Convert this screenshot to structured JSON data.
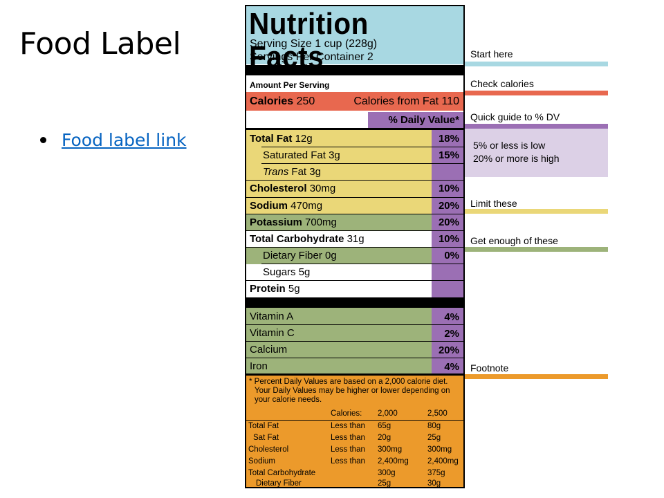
{
  "slide": {
    "title": "Food Label",
    "link_text": "Food label link"
  },
  "label": {
    "title": "Nutrition Facts",
    "serving_size": "Serving Size 1 cup (228g)",
    "servings": "Servings Per Container  2",
    "amount_per_serving": "Amount Per Serving",
    "calories_label": "Calories",
    "calories_value": "250",
    "calories_fat": "Calories from Fat 110",
    "daily_value_header": "% Daily Value*",
    "rows": [
      {
        "name": "Total Fat",
        "amount": "12g",
        "pct": "18%"
      },
      {
        "name": "Saturated Fat",
        "amount": "3g",
        "pct": "15%"
      },
      {
        "name": "Trans",
        "suffix": " Fat",
        "amount": "3g",
        "pct": ""
      },
      {
        "name": "Cholesterol",
        "amount": "30mg",
        "pct": "10%"
      },
      {
        "name": "Sodium",
        "amount": "470mg",
        "pct": "20%"
      },
      {
        "name": "Potassium",
        "amount": "700mg",
        "pct": "20%"
      },
      {
        "name": "Total Carbohydrate",
        "amount": "31g",
        "pct": "10%"
      },
      {
        "name": "Dietary Fiber",
        "amount": "0g",
        "pct": "0%"
      },
      {
        "name": "Sugars",
        "amount": "5g",
        "pct": ""
      },
      {
        "name": "Protein",
        "amount": "5g",
        "pct": ""
      }
    ],
    "vitamins": [
      {
        "name": "Vitamin A",
        "pct": "4%"
      },
      {
        "name": "Vitamin C",
        "pct": "2%"
      },
      {
        "name": "Calcium",
        "pct": "20%"
      },
      {
        "name": "Iron",
        "pct": "4%"
      }
    ],
    "footnote": [
      "* Percent Daily Values are based on a 2,000 calorie diet.",
      "Your Daily Values may be higher or lower depending on",
      "your calorie needs."
    ],
    "footer_table": {
      "header": [
        "Calories:",
        "2,000",
        "2,500"
      ],
      "rows": [
        [
          "Total Fat",
          "Less than",
          "65g",
          "80g"
        ],
        [
          "Sat Fat",
          "Less than",
          "20g",
          "25g"
        ],
        [
          "Cholesterol",
          "Less than",
          "300mg",
          "300mg"
        ],
        [
          "Sodium",
          "Less than",
          "2,400mg",
          "2,400mg"
        ],
        [
          "Total Carbohydrate",
          "",
          "300g",
          "375g"
        ],
        [
          "Dietary Fiber",
          "",
          "25g",
          "30g"
        ]
      ]
    }
  },
  "guides": {
    "start_here": "Start here",
    "check_calories": "Check calories",
    "quick_guide": "Quick guide to % DV",
    "low": "5% or less is low",
    "high": "20% or more is high",
    "limit_these": "Limit these",
    "get_enough": "Get enough of these",
    "footnote": "Footnote"
  },
  "colors": {
    "blue": "#a8d8e2",
    "red": "#e8684f",
    "purple": "#9b6fb4",
    "light_purple": "#dcd0e6",
    "yellow": "#ead778",
    "green": "#9db37a",
    "orange": "#ec9a2b",
    "link": "#0563c1"
  }
}
